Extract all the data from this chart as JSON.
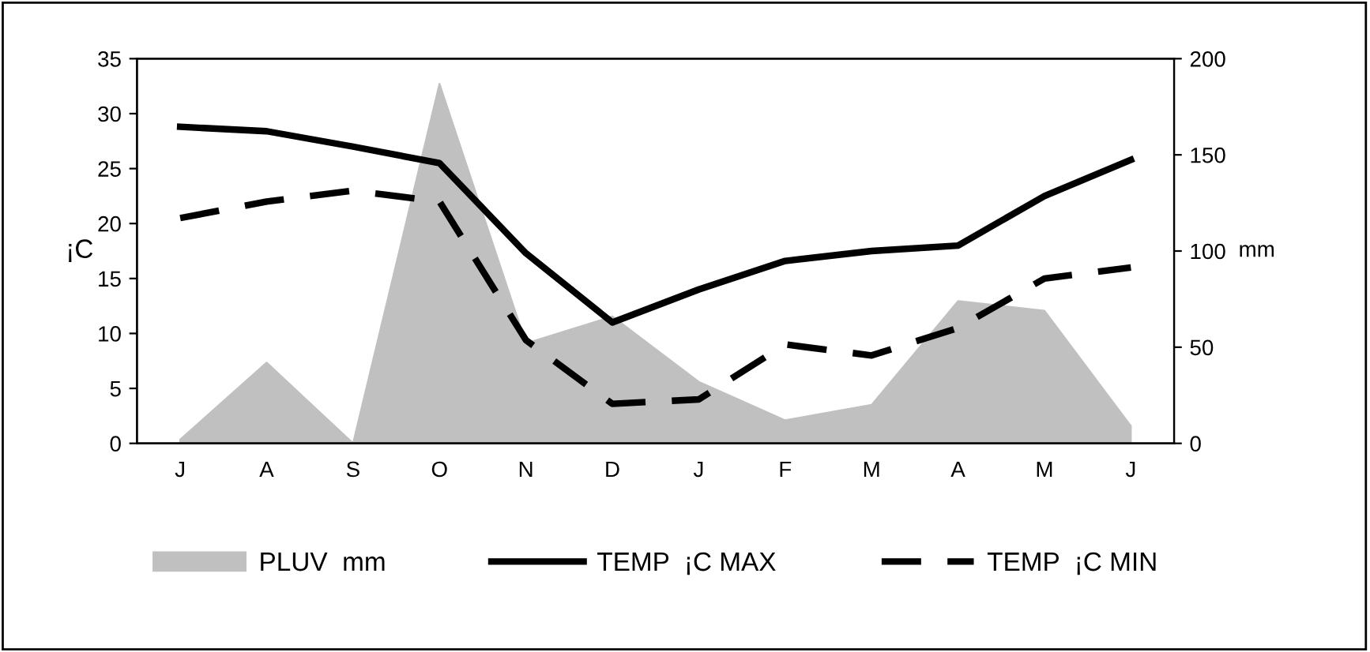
{
  "chart_data": {
    "type": "line",
    "ylabel": "¡C",
    "y2label": "mm",
    "categories": [
      "J",
      "A",
      "S",
      "O",
      "N",
      "D",
      "J",
      "F",
      "M",
      "A",
      "M",
      "J"
    ],
    "series": [
      {
        "name": "PLUV  mm",
        "type": "area",
        "axis": "y2",
        "color": "#c0c0c0",
        "values": [
          2,
          42,
          0,
          187,
          52,
          66,
          32,
          12,
          20,
          74,
          69,
          9
        ]
      },
      {
        "name": "TEMP  ¡C MAX",
        "color": "#000000",
        "line_style": "solid",
        "values": [
          28.8,
          28.4,
          27,
          25.5,
          17.3,
          11,
          14,
          16.6,
          17.5,
          18,
          22.5,
          25.8
        ]
      },
      {
        "name": "TEMP  ¡C MIN",
        "color": "#000000",
        "line_style": "dashed",
        "values": [
          20.5,
          22,
          23,
          22,
          9.4,
          3.6,
          4,
          9,
          8,
          10.5,
          15,
          16
        ]
      }
    ],
    "ylim": [
      0,
      35
    ],
    "yticks": [
      0,
      5,
      10,
      15,
      20,
      25,
      30,
      35
    ],
    "y2lim": [
      0,
      200
    ],
    "y2ticks": [
      0,
      50,
      100,
      150,
      200
    ],
    "grid": false,
    "legend": "bottom"
  }
}
